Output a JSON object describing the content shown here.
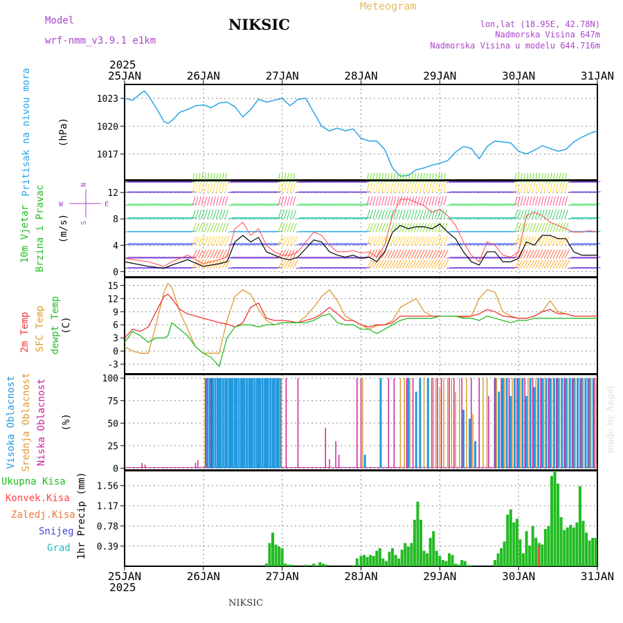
{
  "header": {
    "model_label": "Model",
    "model_name": "wrf-nmm_v3.9.1 e1km",
    "station": "NIKSIC",
    "meteogram": "Meteogram",
    "lonlat": "lon,lat (18.95E, 42.78N)",
    "altitude": "Nadmorska Visina 647m",
    "model_altitude": "Nadmorska Visina u modelu 644.716m",
    "year_top": "2025",
    "year_bottom": "2025",
    "footer_station": "NIKSIC",
    "watermark": "made by Angel"
  },
  "colors": {
    "pressure": "#29a3e6",
    "wind_speed": "#000000",
    "gust": "#ff4444",
    "temp2m": "#ee3333",
    "sfc_temp": "#dd9933",
    "dewpoint": "#22bb22",
    "high_cloud": "#2299dd",
    "mid_cloud": "#dd9933",
    "low_cloud": "#cc2299",
    "precip": "#22bb22",
    "label_purple": "#aa44cc",
    "grid": "#888888"
  },
  "chart_data": [
    {
      "type": "line",
      "panel": "pressure",
      "ylabel_parts": [
        "Pritisak na nivou mora",
        "(hPa)"
      ],
      "yticks": [
        1017,
        1020,
        1023
      ],
      "ylim": [
        1014.2,
        1024.5
      ],
      "x_days": [
        0,
        0.1,
        0.2,
        0.25,
        0.3,
        0.4,
        0.5,
        0.55,
        0.6,
        0.7,
        0.8,
        0.9,
        1.0,
        1.1,
        1.2,
        1.3,
        1.4,
        1.5,
        1.6,
        1.7,
        1.8,
        1.9,
        2.0,
        2.1,
        2.2,
        2.3,
        2.4,
        2.5,
        2.6,
        2.7,
        2.8,
        2.9,
        3.0,
        3.1,
        3.2,
        3.3,
        3.4,
        3.5,
        3.6,
        3.7,
        3.8,
        3.9,
        4.0,
        4.1,
        4.2,
        4.3,
        4.4,
        4.5,
        4.6,
        4.7,
        4.8,
        4.9,
        5.0,
        5.1,
        5.2,
        5.3,
        5.4,
        5.5,
        5.6,
        5.7,
        5.8,
        5.9,
        6.0
      ],
      "values": [
        1023,
        1022.8,
        1023.5,
        1023.8,
        1023.3,
        1022,
        1020.5,
        1020.3,
        1020.6,
        1021.5,
        1021.8,
        1022.2,
        1022.3,
        1022.0,
        1022.5,
        1022.6,
        1022.1,
        1021.0,
        1021.8,
        1022.9,
        1022.6,
        1022.8,
        1023.0,
        1022.2,
        1022.9,
        1023.0,
        1021.5,
        1020.0,
        1019.5,
        1019.8,
        1019.5,
        1019.7,
        1018.7,
        1018.4,
        1018.4,
        1017.5,
        1015.5,
        1014.6,
        1014.7,
        1015.3,
        1015.5,
        1015.8,
        1016.0,
        1016.3,
        1017.2,
        1017.8,
        1017.6,
        1016.5,
        1017.8,
        1018.4,
        1018.3,
        1018.2,
        1017.3,
        1017.0,
        1017.4,
        1017.9,
        1017.6,
        1017.3,
        1017.5,
        1018.3,
        1018.8,
        1019.2,
        1019.5
      ]
    },
    {
      "type": "line",
      "panel": "wind",
      "ylabel_parts": [
        "10m Vjetar",
        "Brzina i Pravac",
        "(m/s)"
      ],
      "compass": [
        "N",
        "E",
        "S",
        "W"
      ],
      "yticks": [
        0,
        4,
        8,
        12
      ],
      "ylim": [
        -0.8,
        13.8
      ],
      "x_days": [
        0,
        0.3,
        0.5,
        0.6,
        0.8,
        1.0,
        1.2,
        1.3,
        1.4,
        1.5,
        1.6,
        1.7,
        1.8,
        1.9,
        2.0,
        2.1,
        2.2,
        2.3,
        2.4,
        2.5,
        2.6,
        2.7,
        2.8,
        2.9,
        3.0,
        3.1,
        3.2,
        3.3,
        3.4,
        3.5,
        3.6,
        3.7,
        3.8,
        3.9,
        4.0,
        4.1,
        4.2,
        4.3,
        4.4,
        4.5,
        4.6,
        4.7,
        4.8,
        4.9,
        5.0,
        5.1,
        5.2,
        5.3,
        5.4,
        5.5,
        5.6,
        5.7,
        5.8,
        5.9,
        6.0
      ],
      "series": [
        {
          "name": "speed",
          "values": [
            1.5,
            0.8,
            0.5,
            1.0,
            1.8,
            0.8,
            1.2,
            1.5,
            4.5,
            5.5,
            4.5,
            5.2,
            3.0,
            2.5,
            2.0,
            1.8,
            2.2,
            3.5,
            4.8,
            4.5,
            3.0,
            2.5,
            2.2,
            2.5,
            2.0,
            2.2,
            1.5,
            3.0,
            6.0,
            7.0,
            6.5,
            6.8,
            6.8,
            6.5,
            7.2,
            6.0,
            5.0,
            3.0,
            1.5,
            1.0,
            3.0,
            3.0,
            1.5,
            1.5,
            2.0,
            4.5,
            4.0,
            5.5,
            5.5,
            5.0,
            5.0,
            3.0,
            2.5,
            2.5,
            2.5
          ]
        },
        {
          "name": "gust",
          "values": [
            2.0,
            1.5,
            0.8,
            1.5,
            2.5,
            1.2,
            1.8,
            2.2,
            6.5,
            7.5,
            5.5,
            6.5,
            4.0,
            3.0,
            2.5,
            2.5,
            3.0,
            4.5,
            6.0,
            5.5,
            4.0,
            3.0,
            3.0,
            3.2,
            2.8,
            3.0,
            2.2,
            4.0,
            8.5,
            11.0,
            11.0,
            10.5,
            10.0,
            9.0,
            9.5,
            8.5,
            7.0,
            4.5,
            2.5,
            1.5,
            4.5,
            4.0,
            2.5,
            2.2,
            3.0,
            8.5,
            9.0,
            8.5,
            7.5,
            7.0,
            6.5,
            6.0,
            6.0,
            6.2,
            6.0
          ]
        }
      ]
    },
    {
      "type": "line",
      "panel": "temperature",
      "ylabel_parts": [
        "2m Temp",
        "SFC Temp",
        "dewpt Temp",
        "(C)"
      ],
      "yticks": [
        -3,
        0,
        3,
        6,
        9,
        12,
        15
      ],
      "ylim": [
        -5.2,
        16.8
      ],
      "x_days": [
        0,
        0.1,
        0.2,
        0.3,
        0.4,
        0.5,
        0.55,
        0.6,
        0.7,
        0.8,
        0.9,
        1.0,
        1.1,
        1.2,
        1.3,
        1.4,
        1.5,
        1.6,
        1.7,
        1.8,
        1.9,
        2.0,
        2.1,
        2.2,
        2.3,
        2.4,
        2.5,
        2.6,
        2.7,
        2.8,
        2.9,
        3.0,
        3.1,
        3.2,
        3.3,
        3.4,
        3.5,
        3.6,
        3.7,
        3.8,
        3.9,
        4.0,
        4.1,
        4.2,
        4.3,
        4.4,
        4.5,
        4.6,
        4.7,
        4.8,
        4.9,
        5.0,
        5.1,
        5.2,
        5.3,
        5.4,
        5.5,
        5.6,
        5.7,
        5.8,
        5.9,
        6.0
      ],
      "series": [
        {
          "name": "2m",
          "values": [
            3,
            5,
            4.5,
            5.5,
            9,
            12.5,
            13,
            12,
            9.5,
            8.5,
            8,
            7.5,
            7,
            6.5,
            6.2,
            5.5,
            6.5,
            10,
            11,
            7.5,
            7,
            7,
            6.8,
            6.5,
            7,
            7.5,
            8.5,
            10,
            8.5,
            7,
            7,
            6,
            5.5,
            6,
            6,
            6.5,
            8,
            8,
            8,
            8,
            8,
            8,
            8,
            8,
            7.8,
            8,
            8.5,
            9.5,
            9,
            8,
            7.8,
            7.5,
            7.5,
            8,
            9,
            9.5,
            8.5,
            8.5,
            8,
            8,
            8,
            8
          ]
        },
        {
          "name": "SFC",
          "values": [
            1,
            0,
            -0.5,
            -0.5,
            6,
            13.5,
            15.5,
            14.5,
            9,
            5,
            1,
            -0.5,
            -0.5,
            -0.5,
            7,
            12.5,
            14,
            13,
            9.5,
            7,
            6,
            6.5,
            6.5,
            6.5,
            8,
            10,
            12.5,
            14,
            11.5,
            8,
            7,
            6,
            5,
            5.8,
            6,
            7,
            10,
            11,
            12,
            9,
            8,
            8,
            8,
            8,
            8,
            8,
            12,
            14,
            13.5,
            9,
            8,
            7.5,
            7.5,
            8,
            9,
            11.5,
            9,
            8.5,
            8,
            8,
            8,
            8
          ]
        },
        {
          "name": "dewpt",
          "values": [
            2,
            4.5,
            3.5,
            2,
            3,
            3,
            3.5,
            6.5,
            5,
            3.5,
            1,
            -0.5,
            -1.5,
            -3.5,
            3,
            5.5,
            6,
            6,
            5.5,
            6,
            6,
            6.5,
            6.5,
            6.5,
            6.5,
            7,
            8,
            8.5,
            6.5,
            6,
            6,
            5,
            5,
            4,
            5,
            6,
            7,
            7.5,
            7.5,
            7.5,
            7.5,
            8,
            8,
            8,
            7.5,
            7.5,
            7,
            8,
            7.5,
            7,
            6.5,
            7,
            7,
            7.5,
            7.5,
            7.5,
            7.5,
            7.5,
            7.5,
            7.5,
            7.5,
            7.5
          ]
        }
      ]
    },
    {
      "type": "bar",
      "panel": "clouds",
      "ylabel_parts": [
        "Visoka Oblacnost",
        "Srednja Oblacnost",
        "Niska Oblacnost",
        "(%)"
      ],
      "yticks": [
        0,
        25,
        50,
        75,
        100
      ],
      "ylim": [
        -2,
        104
      ],
      "series": [
        {
          "name": "high",
          "x_days": [
            1.05,
            1.08,
            1.1,
            1.12,
            1.15,
            1.18,
            1.2,
            1.22,
            1.25,
            1.28,
            1.3,
            1.33,
            1.35,
            1.37,
            1.4,
            1.42,
            1.45,
            1.48,
            1.5,
            1.52,
            1.55,
            1.58,
            1.6,
            1.62,
            1.65,
            1.68,
            1.7,
            1.72,
            1.75,
            1.78,
            1.8,
            1.82,
            1.85,
            1.88,
            1.9,
            1.93,
            1.95,
            1.98,
            3.05,
            3.25,
            3.6,
            3.7,
            3.75,
            3.85,
            4.3,
            4.38,
            4.45,
            4.7,
            4.75,
            4.8,
            4.85,
            4.9,
            4.95,
            5.0,
            5.05,
            5.1,
            5.15,
            5.2,
            5.25,
            5.3,
            5.35,
            5.4,
            5.45,
            5.5,
            5.55,
            5.6,
            5.65,
            5.7,
            5.75,
            5.8,
            5.85,
            5.9,
            5.95
          ],
          "values": [
            100,
            100,
            100,
            100,
            100,
            100,
            100,
            100,
            100,
            100,
            100,
            100,
            100,
            100,
            100,
            100,
            100,
            100,
            100,
            100,
            100,
            100,
            100,
            100,
            100,
            100,
            100,
            100,
            100,
            100,
            100,
            100,
            100,
            100,
            100,
            100,
            100,
            100,
            15,
            100,
            100,
            85,
            100,
            100,
            65,
            55,
            30,
            100,
            85,
            100,
            100,
            80,
            100,
            100,
            100,
            80,
            100,
            90,
            100,
            100,
            100,
            100,
            100,
            100,
            100,
            100,
            100,
            100,
            100,
            100,
            100,
            100,
            100
          ]
        },
        {
          "name": "mid",
          "x_days": [
            1.02,
            1.97,
            3.02,
            3.5,
            3.55,
            3.62,
            3.8,
            3.92,
            3.95,
            4.0,
            4.05,
            4.1,
            4.15,
            4.2,
            4.25,
            4.34,
            4.42,
            4.55,
            4.6,
            4.72,
            4.82,
            4.92,
            5.02,
            5.12,
            5.22,
            5.32,
            5.42,
            5.52,
            5.62,
            5.72,
            5.82,
            5.92,
            5.98
          ],
          "values": [
            100,
            100,
            100,
            100,
            100,
            100,
            100,
            100,
            100,
            90,
            100,
            100,
            100,
            85,
            100,
            100,
            60,
            100,
            100,
            100,
            100,
            100,
            100,
            100,
            100,
            100,
            100,
            100,
            100,
            100,
            100,
            100,
            100
          ]
        },
        {
          "name": "low",
          "x_days": [
            0.22,
            0.26,
            0.5,
            0.9,
            0.93,
            1.03,
            1.1,
            2.05,
            2.2,
            2.55,
            2.6,
            2.68,
            2.72,
            2.95,
            3.0,
            3.35,
            3.42,
            3.58,
            3.66,
            3.9,
            3.97,
            4.02,
            4.12,
            4.18,
            4.28,
            4.4,
            4.5,
            4.62,
            4.7,
            4.78,
            4.88,
            4.98,
            5.08,
            5.18,
            5.28,
            5.38,
            5.48,
            5.58,
            5.68,
            5.78,
            5.88,
            5.96
          ],
          "values": [
            6,
            4,
            1,
            6,
            9,
            100,
            100,
            100,
            100,
            45,
            10,
            30,
            15,
            100,
            100,
            100,
            100,
            100,
            100,
            100,
            100,
            100,
            100,
            100,
            100,
            100,
            100,
            80,
            100,
            100,
            100,
            100,
            100,
            100,
            100,
            100,
            100,
            100,
            100,
            100,
            100,
            100
          ]
        }
      ]
    },
    {
      "type": "bar",
      "panel": "precip",
      "ylabel": "1hr Precip (mm)",
      "legend": [
        "Ukupna Kisa",
        "Konvek.Kisa",
        "Zaledj.Kisa",
        "Snijeg",
        "Grad"
      ],
      "yticks": [
        0.39,
        0.78,
        1.17,
        1.56
      ],
      "ylim": [
        0,
        1.85
      ],
      "x_days": [
        1.8,
        1.84,
        1.88,
        1.92,
        1.96,
        2.0,
        2.04,
        2.08,
        2.12,
        2.3,
        2.4,
        2.44,
        2.48,
        2.52,
        2.56,
        2.9,
        2.95,
        3.0,
        3.04,
        3.08,
        3.12,
        3.16,
        3.2,
        3.24,
        3.28,
        3.32,
        3.36,
        3.4,
        3.44,
        3.48,
        3.52,
        3.56,
        3.6,
        3.64,
        3.68,
        3.72,
        3.76,
        3.8,
        3.84,
        3.88,
        3.92,
        3.96,
        4.0,
        4.04,
        4.08,
        4.12,
        4.16,
        4.2,
        4.24,
        4.28,
        4.32,
        4.36,
        4.4,
        4.7,
        4.74,
        4.78,
        4.82,
        4.86,
        4.9,
        4.94,
        4.98,
        5.02,
        5.06,
        5.1,
        5.14,
        5.18,
        5.22,
        5.26,
        5.3,
        5.34,
        5.38,
        5.42,
        5.46,
        5.5,
        5.54,
        5.58,
        5.62,
        5.66,
        5.7,
        5.74,
        5.78,
        5.82,
        5.86,
        5.9,
        5.94,
        5.98
      ],
      "values": [
        0.05,
        0.45,
        0.65,
        0.42,
        0.38,
        0.35,
        0.05,
        0.03,
        0.03,
        0.03,
        0.05,
        0.02,
        0.08,
        0.05,
        0.03,
        0.02,
        0.15,
        0.2,
        0.22,
        0.18,
        0.22,
        0.2,
        0.3,
        0.35,
        0.15,
        0.1,
        0.28,
        0.35,
        0.22,
        0.15,
        0.32,
        0.45,
        0.38,
        0.45,
        0.9,
        1.25,
        0.9,
        0.3,
        0.25,
        0.55,
        0.68,
        0.3,
        0.2,
        0.12,
        0.1,
        0.25,
        0.22,
        0.05,
        0.03,
        0.12,
        0.1,
        0.02,
        0.02,
        0.12,
        0.25,
        0.35,
        0.48,
        1.0,
        1.1,
        0.85,
        0.92,
        0.52,
        0.25,
        0.68,
        0.4,
        0.78,
        0.55,
        0.45,
        0.42,
        0.72,
        0.78,
        1.75,
        1.85,
        1.6,
        0.95,
        0.7,
        0.75,
        0.8,
        0.75,
        0.85,
        1.55,
        0.88,
        0.65,
        0.5,
        0.55,
        0.55
      ],
      "convective_x_days": [
        5.25
      ],
      "convective_values": [
        0.4
      ]
    }
  ],
  "x_axis": {
    "days": [
      "25JAN",
      "26JAN",
      "27JAN",
      "28JAN",
      "29JAN",
      "30JAN",
      "31JAN"
    ]
  }
}
